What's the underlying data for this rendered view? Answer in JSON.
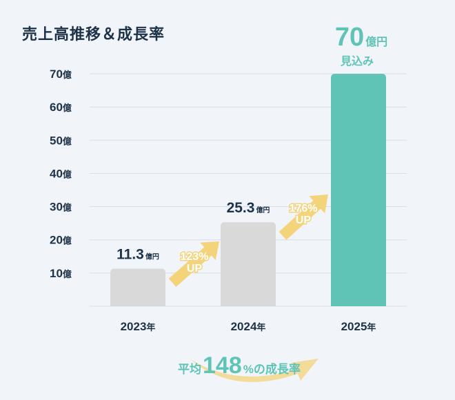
{
  "title": "売上高推移＆成長率",
  "chart_data": {
    "type": "bar",
    "categories": [
      "2023年",
      "2024年",
      "2025年"
    ],
    "values": [
      11.3,
      25.3,
      70
    ],
    "value_labels": [
      {
        "num": "11.3",
        "unit": "億円"
      },
      {
        "num": "25.3",
        "unit": "億円"
      },
      {
        "num": "70",
        "unit": "億円",
        "note": "見込み"
      }
    ],
    "yticks": [
      {
        "value": 10,
        "label": "10億"
      },
      {
        "value": 20,
        "label": "20億"
      },
      {
        "value": 30,
        "label": "30億"
      },
      {
        "value": 40,
        "label": "40億"
      },
      {
        "value": 50,
        "label": "50億"
      },
      {
        "value": 60,
        "label": "60億"
      },
      {
        "value": 70,
        "label": "70億"
      }
    ],
    "ylim": [
      0,
      70
    ],
    "grid": true,
    "growth_annotations": [
      {
        "pct": "123%",
        "word": "UP"
      },
      {
        "pct": "176%",
        "word": "UP"
      }
    ],
    "average": {
      "prefix": "平均",
      "value": "148",
      "suffix": "%の成長率"
    }
  },
  "colors": {
    "bar_gray": "#d9d9d9",
    "bar_accent": "#5fc4b6",
    "arrow": "#f3d47a",
    "text": "#1d3247",
    "grid": "#d7dee6"
  }
}
